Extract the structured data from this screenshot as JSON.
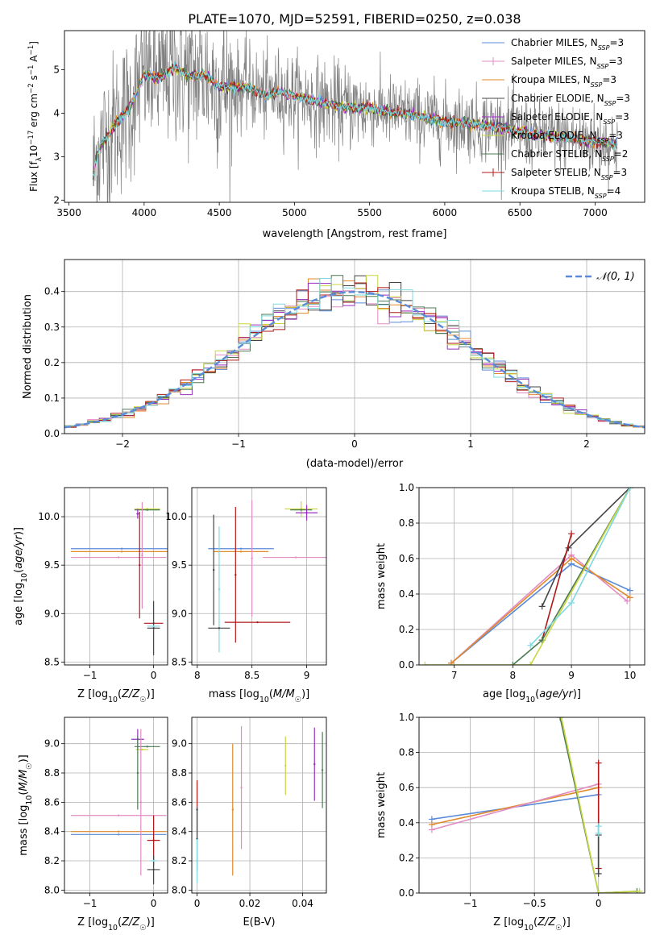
{
  "figure_title": "PLATE=1070, MJD=52591, FIBERID=0250, z=0.038",
  "colors": {
    "Chabrier MILES": "#5b8ad8",
    "Salpeter MILES": "#e28cc4",
    "Kroupa MILES": "#e08a2a",
    "Chabrier ELODIE": "#444444",
    "Salpeter ELODIE": "#9a2fc0",
    "Kroupa ELODIE": "#c8d640",
    "Chabrier STELIB": "#4a7a50",
    "Salpeter STELIB": "#b01818",
    "Kroupa STELIB": "#7fd8e0",
    "data": "#808080",
    "normal": "#5b8ad8"
  },
  "legend_labels": {
    "spectrum": [
      [
        "Chabrier MILES, N",
        "SSP",
        "=3"
      ],
      [
        "Salpeter MILES, N",
        "SSP",
        "=3"
      ],
      [
        "Kroupa MILES, N",
        "SSP",
        "=3"
      ],
      [
        "Chabrier ELODIE, N",
        "SSP",
        "=3"
      ],
      [
        "Salpeter ELODIE, N",
        "SSP",
        "=3"
      ],
      [
        "Kroupa ELODIE, N",
        "SSP",
        "=3"
      ],
      [
        "Chabrier STELIB, N",
        "SSP",
        "=2"
      ],
      [
        "Salpeter STELIB, N",
        "SSP",
        "=3"
      ],
      [
        "Kroupa STELIB, N",
        "SSP",
        "=4"
      ]
    ],
    "normal": "𝒩(0, 1)"
  },
  "chart_data": [
    {
      "id": "spectrum",
      "type": "line",
      "xlabel": "wavelength [Angstrom, rest frame]",
      "ylabel": "Flux [f_λ 10^-17 erg cm^-2 s^-1 A^-1]",
      "xlim": [
        3470,
        7330
      ],
      "ylim": [
        1.95,
        5.9
      ],
      "xticks": [
        3500,
        4000,
        4500,
        5000,
        5500,
        6000,
        6500,
        7000
      ],
      "yticks": [
        2,
        3,
        4,
        5
      ],
      "legend_position": "top-right",
      "data_range": [
        3660,
        7150
      ],
      "continuum": [
        [
          3660,
          2.6
        ],
        [
          3700,
          3.2
        ],
        [
          3800,
          3.7
        ],
        [
          3900,
          4.1
        ],
        [
          4000,
          4.9
        ],
        [
          4100,
          4.8
        ],
        [
          4200,
          5.05
        ],
        [
          4300,
          4.85
        ],
        [
          4400,
          4.9
        ],
        [
          4500,
          4.6
        ],
        [
          4700,
          4.6
        ],
        [
          4800,
          4.4
        ],
        [
          4900,
          4.5
        ],
        [
          5100,
          4.3
        ],
        [
          5300,
          4.15
        ],
        [
          5500,
          4.1
        ],
        [
          5800,
          3.95
        ],
        [
          6000,
          3.8
        ],
        [
          6200,
          3.75
        ],
        [
          6400,
          3.65
        ],
        [
          6600,
          3.5
        ],
        [
          6800,
          3.45
        ],
        [
          7000,
          3.35
        ],
        [
          7150,
          3.3
        ]
      ]
    },
    {
      "id": "residuals",
      "type": "bar",
      "xlabel": "(data-model)/error",
      "ylabel": "Normed distribution",
      "xlim": [
        -2.5,
        2.5
      ],
      "ylim": [
        0,
        0.49
      ],
      "xticks": [
        -2,
        -1,
        0,
        1,
        2
      ],
      "yticks": [
        0,
        0.1,
        0.2,
        0.3,
        0.4
      ],
      "legend_position": "top-right",
      "bin_edges_range": [
        -2.5,
        2.5
      ],
      "n_bins": 50
    },
    {
      "id": "age_vs_Z",
      "type": "scatter",
      "xlabel": "Z [log10(Z/Z☉)]",
      "ylabel": "age [log10(age/yr)]",
      "xlim": [
        -1.4,
        0.22
      ],
      "ylim": [
        8.47,
        10.3
      ],
      "xticks": [
        -1,
        0
      ],
      "yticks": [
        8.5,
        9.0,
        9.5,
        10.0
      ],
      "points": [
        {
          "m": "Chabrier MILES",
          "x": -0.5,
          "y": 9.67,
          "xe": 0.8
        },
        {
          "m": "Kroupa MILES",
          "x": -0.5,
          "y": 9.64,
          "xe": 0.8
        },
        {
          "m": "Salpeter MILES",
          "x": -0.55,
          "y": 9.58,
          "xe": 0.75
        },
        {
          "m": "Kroupa ELODIE",
          "x": -0.1,
          "y": 10.08,
          "xe": 0.2
        },
        {
          "m": "Chabrier STELIB",
          "x": -0.1,
          "y": 10.07,
          "xe": 0.2
        },
        {
          "m": "Salpeter ELODIE",
          "x": -0.25,
          "y": 10.03,
          "xe": 0.02,
          "ye": 0.05
        },
        {
          "m": "Salpeter MILES",
          "x": -0.18,
          "y": 9.6,
          "ye": 0.55
        },
        {
          "m": "Salpeter STELIB",
          "x": -0.22,
          "y": 9.5,
          "ye": 0.55
        },
        {
          "m": "Salpeter STELIB",
          "x": 0.0,
          "y": 8.9,
          "xe": 0.15
        },
        {
          "m": "Chabrier ELODIE",
          "x": 0.0,
          "y": 8.85,
          "xe": 0.1,
          "ye": 0.28
        },
        {
          "m": "Kroupa STELIB",
          "x": 0.0,
          "y": 8.87,
          "xe": 0.1
        }
      ]
    },
    {
      "id": "age_vs_mass",
      "type": "scatter",
      "xlabel": "mass [log10(M/M☉)]",
      "ylabel": "",
      "xlim": [
        7.95,
        9.18
      ],
      "ylim": [
        8.47,
        10.3
      ],
      "xticks": [
        8.0,
        8.5,
        9.0
      ],
      "yticks": [
        8.5,
        9.0,
        9.5,
        10.0
      ],
      "points": [
        {
          "m": "Chabrier MILES",
          "x": 8.4,
          "y": 9.67,
          "xe": 0.3
        },
        {
          "m": "Kroupa MILES",
          "x": 8.4,
          "y": 9.64,
          "xe": 0.25
        },
        {
          "m": "Salpeter MILES",
          "x": 8.9,
          "y": 9.58,
          "xe": 0.3
        },
        {
          "m": "Kroupa ELODIE",
          "x": 8.95,
          "y": 10.08,
          "xe": 0.15,
          "ye": 0.08
        },
        {
          "m": "Chabrier STELIB",
          "x": 8.95,
          "y": 10.07,
          "xe": 0.1
        },
        {
          "m": "Salpeter ELODIE",
          "x": 9.0,
          "y": 10.04,
          "xe": 0.1,
          "ye": 0.08
        },
        {
          "m": "Chabrier ELODIE",
          "x": 8.15,
          "y": 9.45,
          "ye": 0.57
        },
        {
          "m": "Kroupa STELIB",
          "x": 8.2,
          "y": 9.25,
          "ye": 0.65
        },
        {
          "m": "Salpeter STELIB",
          "x": 8.35,
          "y": 9.4,
          "ye": 0.7
        },
        {
          "m": "Salpeter MILES",
          "x": 8.5,
          "y": 9.57,
          "ye": 0.6
        },
        {
          "m": "Salpeter STELIB",
          "x": 8.55,
          "y": 8.91,
          "xe": 0.3
        },
        {
          "m": "Chabrier ELODIE",
          "x": 8.2,
          "y": 8.85,
          "xe": 0.1
        }
      ]
    },
    {
      "id": "massweight_vs_age",
      "type": "line",
      "xlabel": "age [log10(age/yr)]",
      "ylabel": "mass weight",
      "xlim": [
        6.4,
        10.25
      ],
      "ylim": [
        0,
        1.0
      ],
      "xticks": [
        7,
        8,
        9,
        10
      ],
      "yticks": [
        0.0,
        0.2,
        0.4,
        0.6,
        0.8,
        1.0
      ],
      "series": [
        {
          "m": "Chabrier MILES",
          "x": [
            6.95,
            9.0,
            10.0
          ],
          "y": [
            0.01,
            0.57,
            0.42
          ]
        },
        {
          "m": "Salpeter MILES",
          "x": [
            6.95,
            9.0,
            9.95
          ],
          "y": [
            0.01,
            0.62,
            0.36
          ]
        },
        {
          "m": "Kroupa MILES",
          "x": [
            6.95,
            9.0,
            10.0
          ],
          "y": [
            0.01,
            0.6,
            0.38
          ]
        },
        {
          "m": "Chabrier ELODIE",
          "x": [
            8.5,
            8.95,
            10.0
          ],
          "y": [
            0.33,
            0.66,
            1.0
          ]
        },
        {
          "m": "Salpeter STELIB",
          "x": [
            8.5,
            9.0
          ],
          "y": [
            0.14,
            0.74
          ]
        },
        {
          "m": "Chabrier STELIB",
          "x": [
            8.0,
            8.5,
            10.0
          ],
          "y": [
            0.0,
            0.14,
            1.0
          ]
        },
        {
          "m": "Kroupa ELODIE",
          "x": [
            6.5,
            8.3,
            10.0
          ],
          "y": [
            0.0,
            0.0,
            1.0
          ]
        },
        {
          "m": "Kroupa STELIB",
          "x": [
            8.3,
            9.0,
            10.0
          ],
          "y": [
            0.11,
            0.35,
            1.0
          ]
        }
      ]
    },
    {
      "id": "mass_vs_Z",
      "type": "scatter",
      "xlabel": "Z [log10(Z/Z☉)]",
      "ylabel": "mass [log10(M/M☉)]",
      "xlim": [
        -1.4,
        0.22
      ],
      "ylim": [
        7.98,
        9.18
      ],
      "xticks": [
        -1,
        0
      ],
      "yticks": [
        8.0,
        8.2,
        8.4,
        8.6,
        8.8,
        9.0
      ],
      "points": [
        {
          "m": "Salpeter MILES",
          "x": -0.55,
          "y": 8.51,
          "xe": 0.75
        },
        {
          "m": "Kroupa MILES",
          "x": -0.55,
          "y": 8.4,
          "xe": 0.75
        },
        {
          "m": "Chabrier MILES",
          "x": -0.55,
          "y": 8.38,
          "xe": 0.75
        },
        {
          "m": "Salpeter ELODIE",
          "x": -0.25,
          "y": 9.03,
          "xe": 0.1,
          "ye": 0.07
        },
        {
          "m": "Kroupa ELODIE",
          "x": -0.18,
          "y": 8.96,
          "xe": 0.1
        },
        {
          "m": "Chabrier STELIB",
          "x": -0.1,
          "y": 8.98,
          "xe": 0.2
        },
        {
          "m": "Chabrier STELIB",
          "x": -0.25,
          "y": 8.8,
          "ye": 0.25
        },
        {
          "m": "Salpeter MILES",
          "x": -0.2,
          "y": 8.6,
          "ye": 0.5
        },
        {
          "m": "Salpeter STELIB",
          "x": 0.0,
          "y": 8.34,
          "xe": 0.1,
          "ye": 0.17
        },
        {
          "m": "Chabrier ELODIE",
          "x": 0.0,
          "y": 8.14,
          "xe": 0.1,
          "ye": 0.1
        },
        {
          "m": "Kroupa STELIB",
          "x": 0.0,
          "y": 8.2,
          "xe": 0.05
        }
      ]
    },
    {
      "id": "mass_vs_ebv",
      "type": "scatter",
      "xlabel": "E(B-V)",
      "ylabel": "",
      "xlim": [
        -0.002,
        0.049
      ],
      "ylim": [
        7.98,
        9.18
      ],
      "xticks": [
        0.0,
        0.02,
        0.04
      ],
      "yticks": [
        8.0,
        8.2,
        8.4,
        8.6,
        8.8,
        9.0
      ],
      "points": [
        {
          "m": "Salpeter STELIB",
          "x": 0.0,
          "y": 8.55,
          "ye": 0.2
        },
        {
          "m": "Chabrier ELODIE",
          "x": 0.0,
          "y": 8.35,
          "ye": 0.22
        },
        {
          "m": "Kroupa STELIB",
          "x": 0.0,
          "y": 8.2,
          "ye": 0.15
        },
        {
          "m": "Kroupa MILES",
          "x": 0.0135,
          "y": 8.55,
          "ye": 0.45
        },
        {
          "m": "Salpeter MILES",
          "x": 0.0168,
          "y": 8.7,
          "ye": 0.42
        },
        {
          "m": "Kroupa ELODIE",
          "x": 0.0335,
          "y": 8.85,
          "ye": 0.2
        },
        {
          "m": "Salpeter ELODIE",
          "x": 0.0445,
          "y": 8.86,
          "ye": 0.25
        },
        {
          "m": "Chabrier STELIB",
          "x": 0.0475,
          "y": 8.82,
          "ye": 0.26
        }
      ]
    },
    {
      "id": "massweight_vs_Z",
      "type": "line",
      "xlabel": "Z [log10(Z/Z☉)]",
      "ylabel": "mass weight",
      "xlim": [
        -1.4,
        0.36
      ],
      "ylim": [
        0,
        1.0
      ],
      "xticks": [
        -1.0,
        -0.5,
        0.0
      ],
      "yticks": [
        0.0,
        0.2,
        0.4,
        0.6,
        0.8,
        1.0
      ],
      "series": [
        {
          "m": "Chabrier MILES",
          "x": [
            -1.3,
            0.0
          ],
          "y": [
            0.42,
            0.56
          ]
        },
        {
          "m": "Kroupa MILES",
          "x": [
            -1.3,
            0.0
          ],
          "y": [
            0.39,
            0.6
          ]
        },
        {
          "m": "Salpeter MILES",
          "x": [
            -1.3,
            0.0
          ],
          "y": [
            0.36,
            0.62
          ]
        },
        {
          "m": "Chabrier STELIB",
          "x": [
            -0.3,
            0.0,
            0.3
          ],
          "y": [
            1.0,
            0.0,
            0.01
          ]
        },
        {
          "m": "Kroupa ELODIE",
          "x": [
            -0.29,
            0.0,
            0.32
          ],
          "y": [
            1.0,
            0.0,
            0.01
          ]
        },
        {
          "m": "Salpeter STELIB",
          "x": [
            0.0,
            0.0
          ],
          "y": [
            0.74,
            0.14
          ]
        },
        {
          "m": "Chabrier ELODIE",
          "x": [
            0.0,
            0.0
          ],
          "y": [
            0.33,
            0.11
          ]
        },
        {
          "m": "Kroupa STELIB",
          "x": [
            0.0,
            0.0
          ],
          "y": [
            0.38,
            0.34
          ]
        }
      ]
    }
  ]
}
